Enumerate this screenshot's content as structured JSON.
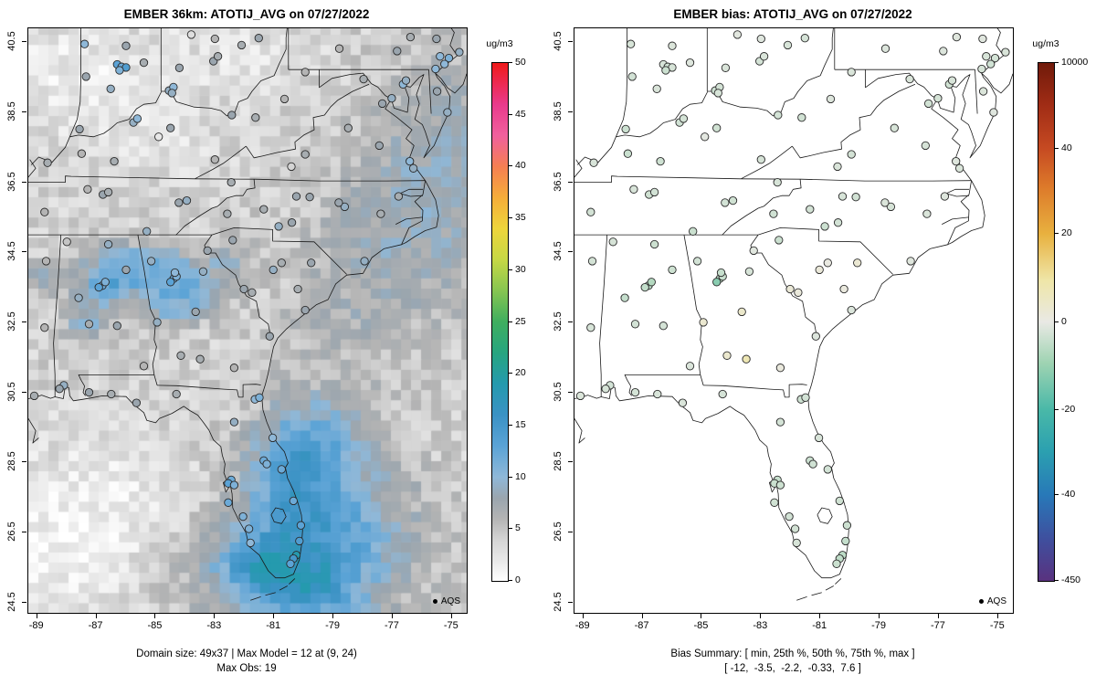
{
  "figure": {
    "background": "#ffffff"
  },
  "chart_data": [
    {
      "type": "map-scatter",
      "panel": "model",
      "title": "EMBER 36km: ATOTIJ_AVG on 07/27/2022",
      "xlim": [
        -89.3,
        -74.5
      ],
      "ylim": [
        24.2,
        40.9
      ],
      "x_ticks": [
        "-89",
        "-87",
        "-85",
        "-83",
        "-81",
        "-79",
        "-77",
        "-75"
      ],
      "x_tick_values": [
        -89,
        -87,
        -85,
        -83,
        -81,
        -79,
        -77,
        -75
      ],
      "y_ticks": [
        "40.5",
        "38.5",
        "36.5",
        "34.5",
        "32.5",
        "30.5",
        "28.5",
        "26.5",
        "24.5"
      ],
      "y_tick_values": [
        40.5,
        38.5,
        36.5,
        34.5,
        32.5,
        30.5,
        28.5,
        26.5,
        24.5
      ],
      "legend_label": "AQS",
      "caption_line1": "Domain size: 49x37 | Max Model = 12 at (9, 24)",
      "caption_line2": "Max Obs: 19",
      "value_max": 50,
      "colorbar": {
        "label": "ug/m3",
        "ticks": [
          {
            "f": 0,
            "label": "0"
          },
          {
            "f": 0.1,
            "label": "5"
          },
          {
            "f": 0.2,
            "label": "10"
          },
          {
            "f": 0.3,
            "label": "15"
          },
          {
            "f": 0.4,
            "label": "20"
          },
          {
            "f": 0.5,
            "label": "25"
          },
          {
            "f": 0.6,
            "label": "30"
          },
          {
            "f": 0.7,
            "label": "35"
          },
          {
            "f": 0.8,
            "label": "40"
          },
          {
            "f": 0.9,
            "label": "45"
          },
          {
            "f": 1,
            "label": "50"
          }
        ],
        "stops": [
          [
            0,
            "#ffffff"
          ],
          [
            0.04,
            "#e8e8e8"
          ],
          [
            0.08,
            "#d4d4d4"
          ],
          [
            0.12,
            "#b4b4b4"
          ],
          [
            0.16,
            "#9aa5ae"
          ],
          [
            0.2,
            "#8fb8d8"
          ],
          [
            0.26,
            "#5ba3d6"
          ],
          [
            0.32,
            "#3b92c4"
          ],
          [
            0.38,
            "#259aae"
          ],
          [
            0.44,
            "#27a580"
          ],
          [
            0.5,
            "#3fae5f"
          ],
          [
            0.56,
            "#86c551"
          ],
          [
            0.62,
            "#c6d845"
          ],
          [
            0.68,
            "#eed53c"
          ],
          [
            0.74,
            "#f5ad3a"
          ],
          [
            0.8,
            "#f57f52"
          ],
          [
            0.86,
            "#f0609d"
          ],
          [
            0.92,
            "#e93a8c"
          ],
          [
            1,
            "#ef1a1a"
          ]
        ]
      },
      "raster": {
        "cell_lon": 0.34,
        "cell_lat": 0.29,
        "base": 4.0,
        "noise": 1.8,
        "patches": [
          [
            -87.6,
            39.6,
            3.0,
            1.9,
            -2.2
          ],
          [
            -82.0,
            40.2,
            2.6,
            1.4,
            -1.4
          ],
          [
            -84.5,
            37.6,
            2.2,
            1.2,
            -1.0
          ],
          [
            -76.3,
            35.3,
            3.0,
            2.6,
            4.0
          ],
          [
            -74.9,
            38.3,
            2.4,
            2.4,
            2.8
          ],
          [
            -78.6,
            32.6,
            2.6,
            2.0,
            1.8
          ],
          [
            -88.8,
            25.9,
            3.4,
            2.6,
            -2.6
          ],
          [
            -86.0,
            27.6,
            2.6,
            2.0,
            -1.4
          ],
          [
            -83.4,
            25.2,
            2.2,
            1.4,
            1.6
          ],
          [
            -86.6,
            33.6,
            1.1,
            0.75,
            7.5
          ],
          [
            -85.2,
            34.15,
            1.5,
            0.65,
            7.0
          ],
          [
            -83.7,
            33.35,
            1.0,
            0.7,
            6.5
          ],
          [
            -84.8,
            33.0,
            0.8,
            0.6,
            5.0
          ],
          [
            -87.35,
            32.45,
            0.7,
            0.55,
            5.5
          ],
          [
            -88.75,
            33.75,
            0.6,
            0.45,
            4.5
          ],
          [
            -82.5,
            34.3,
            0.8,
            0.5,
            3.5
          ],
          [
            -79.3,
            26.4,
            2.8,
            2.3,
            9.5
          ],
          [
            -80.5,
            28.4,
            1.4,
            1.6,
            6.0
          ],
          [
            -79.2,
            29.3,
            1.6,
            1.2,
            4.5
          ],
          [
            -81.6,
            25.7,
            1.6,
            0.9,
            6.0
          ],
          [
            -80.2,
            24.8,
            2.0,
            1.0,
            7.0
          ]
        ]
      }
    },
    {
      "type": "map-scatter",
      "panel": "bias",
      "title": "EMBER bias: ATOTIJ_AVG on 07/27/2022",
      "xlim": [
        -89.3,
        -74.5
      ],
      "ylim": [
        24.2,
        40.9
      ],
      "x_ticks": [
        "-89",
        "-87",
        "-85",
        "-83",
        "-81",
        "-79",
        "-77",
        "-75"
      ],
      "x_tick_values": [
        -89,
        -87,
        -85,
        -83,
        -81,
        -79,
        -77,
        -75
      ],
      "y_ticks": [
        "40.5",
        "38.5",
        "36.5",
        "34.5",
        "32.5",
        "30.5",
        "28.5",
        "26.5",
        "24.5"
      ],
      "y_tick_values": [
        40.5,
        38.5,
        36.5,
        34.5,
        32.5,
        30.5,
        28.5,
        26.5,
        24.5
      ],
      "legend_label": "AQS",
      "caption_line1": "Bias Summary: [ min, 25th %, 50th %, 75th %, max ]",
      "caption_line2": "[ -12,  -3.5,  -2.2,  -0.33,  7.6 ]",
      "colorbar": {
        "label": "ug/m3",
        "ticks": [
          {
            "f": 0,
            "label": "-450"
          },
          {
            "f": 0.165,
            "label": "-40"
          },
          {
            "f": 0.33,
            "label": "-20"
          },
          {
            "f": 0.5,
            "label": "0"
          },
          {
            "f": 0.67,
            "label": "20"
          },
          {
            "f": 0.835,
            "label": "40"
          },
          {
            "f": 1,
            "label": "10000"
          }
        ],
        "stops": [
          [
            0,
            "#59327f"
          ],
          [
            0.08,
            "#3f4f9e"
          ],
          [
            0.165,
            "#2878b8"
          ],
          [
            0.25,
            "#2ba0b0"
          ],
          [
            0.33,
            "#49b8a8"
          ],
          [
            0.42,
            "#9ed3b2"
          ],
          [
            0.5,
            "#e9e9e4"
          ],
          [
            0.58,
            "#efe6a8"
          ],
          [
            0.67,
            "#e8b13f"
          ],
          [
            0.76,
            "#dd7a2a"
          ],
          [
            0.835,
            "#c64a22"
          ],
          [
            0.92,
            "#a02c15"
          ],
          [
            1,
            "#701a0a"
          ]
        ]
      },
      "bias_scale": [
        [
          -450,
          0
        ],
        [
          -40,
          0.165
        ],
        [
          -20,
          0.33
        ],
        [
          0,
          0.5
        ],
        [
          20,
          0.67
        ],
        [
          40,
          0.835
        ],
        [
          10000,
          1
        ]
      ]
    }
  ],
  "stations": [
    [
      -86.3,
      39.87,
      13,
      -2.1
    ],
    [
      -86.15,
      39.8,
      12,
      -3.0
    ],
    [
      -86.0,
      39.78,
      14,
      -2.4
    ],
    [
      -86.22,
      39.7,
      11,
      -3.8
    ],
    [
      -87.35,
      39.52,
      8,
      -2.9
    ],
    [
      -86.52,
      39.17,
      9,
      -2.0
    ],
    [
      -87.57,
      38.02,
      8,
      -3.6
    ],
    [
      -85.4,
      39.92,
      7,
      -1.4
    ],
    [
      -87.4,
      40.45,
      10,
      -2.2
    ],
    [
      -86.0,
      40.4,
      8,
      -1.8
    ],
    [
      -84.55,
      39.12,
      9,
      -3.4
    ],
    [
      -84.4,
      39.22,
      10,
      -2.8
    ],
    [
      -84.2,
      39.77,
      8,
      -2.0
    ],
    [
      -83.05,
      39.96,
      8,
      -2.6
    ],
    [
      -82.9,
      40.1,
      7,
      -1.9
    ],
    [
      -83.8,
      40.72,
      3,
      -0.9
    ],
    [
      -82.1,
      40.42,
      7,
      -2.2
    ],
    [
      -81.52,
      40.62,
      8,
      -2.5
    ],
    [
      -83.0,
      40.6,
      6,
      -1.2
    ],
    [
      -85.75,
      38.21,
      9,
      -3.1
    ],
    [
      -85.62,
      38.32,
      10,
      -2.6
    ],
    [
      -84.5,
      38.05,
      8,
      -3.2
    ],
    [
      -84.45,
      39.05,
      9,
      -2.3
    ],
    [
      -86.4,
      37.1,
      7,
      -3.4
    ],
    [
      -88.65,
      37.06,
      7,
      -2.1
    ],
    [
      -87.5,
      37.32,
      6,
      -4.0
    ],
    [
      -83.0,
      37.15,
      6,
      -2.4
    ],
    [
      -84.9,
      37.8,
      2,
      -0.8
    ],
    [
      -81.63,
      38.35,
      7,
      -3.0
    ],
    [
      -82.43,
      38.42,
      8,
      -2.7
    ],
    [
      -79.95,
      39.65,
      6,
      -1.9
    ],
    [
      -80.65,
      38.88,
      6,
      -1.5
    ],
    [
      -77.98,
      39.45,
      7,
      -2.0
    ],
    [
      -76.85,
      40.25,
      8,
      -1.6
    ],
    [
      -75.4,
      40.1,
      10,
      -2.2
    ],
    [
      -75.1,
      40.05,
      11,
      -2.7
    ],
    [
      -75.25,
      39.88,
      10,
      -3.1
    ],
    [
      -74.75,
      40.22,
      9,
      -2.0
    ],
    [
      -75.52,
      40.6,
      8,
      -1.1
    ],
    [
      -78.8,
      40.32,
      6,
      -1.6
    ],
    [
      -76.4,
      40.65,
      7,
      -1.3
    ],
    [
      -77.03,
      38.9,
      9,
      -2.6
    ],
    [
      -76.65,
      39.3,
      10,
      -3.2
    ],
    [
      -76.55,
      39.41,
      9,
      -2.1
    ],
    [
      -75.55,
      39.74,
      10,
      -2.4
    ],
    [
      -75.5,
      39.1,
      8,
      -1.8
    ],
    [
      -75.15,
      38.5,
      9,
      -1.2
    ],
    [
      -77.45,
      37.55,
      8,
      -2.4
    ],
    [
      -77.35,
      38.75,
      8,
      -3.0
    ],
    [
      -78.5,
      38.05,
      7,
      -2.2
    ],
    [
      -76.3,
      36.9,
      9,
      -1.9
    ],
    [
      -76.42,
      37.1,
      10,
      -1.4
    ],
    [
      -79.95,
      37.3,
      7,
      -2.8
    ],
    [
      -80.42,
      36.95,
      4,
      -2.0
    ],
    [
      -86.78,
      36.15,
      8,
      -3.3
    ],
    [
      -86.6,
      36.22,
      7,
      -2.9
    ],
    [
      -85.3,
      35.1,
      9,
      -3.9
    ],
    [
      -83.95,
      35.98,
      9,
      -3.2
    ],
    [
      -84.22,
      35.92,
      8,
      -2.7
    ],
    [
      -82.45,
      36.5,
      7,
      -2.3
    ],
    [
      -88.75,
      35.65,
      6,
      -2.8
    ],
    [
      -87.3,
      36.3,
      6,
      -2.1
    ],
    [
      -82.58,
      35.6,
      7,
      -3.1
    ],
    [
      -80.85,
      35.24,
      9,
      -3.6
    ],
    [
      -80.4,
      35.35,
      8,
      -2.9
    ],
    [
      -80.25,
      36.1,
      8,
      -2.3
    ],
    [
      -79.8,
      36.08,
      8,
      -3.0
    ],
    [
      -78.62,
      35.8,
      9,
      -2.4
    ],
    [
      -78.82,
      35.92,
      8,
      -1.8
    ],
    [
      -77.4,
      35.6,
      7,
      -1.9
    ],
    [
      -77.95,
      34.25,
      9,
      -1.3
    ],
    [
      -81.35,
      35.73,
      7,
      -2.8
    ],
    [
      -76.8,
      36.1,
      7,
      -1.5
    ],
    [
      -82.4,
      34.85,
      8,
      -3.8
    ],
    [
      -81.03,
      34.0,
      9,
      1.8
    ],
    [
      -80.2,
      33.45,
      7,
      0.9
    ],
    [
      -79.95,
      32.85,
      8,
      -1.7
    ],
    [
      -79.75,
      34.2,
      8,
      2.6
    ],
    [
      -81.75,
      33.35,
      7,
      1.4
    ],
    [
      -80.75,
      34.2,
      7,
      0.4
    ],
    [
      -84.39,
      33.75,
      12,
      -5.2
    ],
    [
      -84.3,
      33.81,
      11,
      -4.1
    ],
    [
      -84.5,
      33.65,
      13,
      -12.0
    ],
    [
      -84.35,
      33.92,
      10,
      -4.4
    ],
    [
      -85.15,
      34.25,
      9,
      -2.9
    ],
    [
      -83.4,
      33.95,
      9,
      -2.2
    ],
    [
      -83.65,
      32.8,
      8,
      3.9
    ],
    [
      -82.02,
      33.45,
      8,
      2.2
    ],
    [
      -84.95,
      32.5,
      9,
      3.1
    ],
    [
      -81.15,
      32.1,
      8,
      -1.6
    ],
    [
      -83.5,
      31.45,
      7,
      7.6
    ],
    [
      -84.15,
      31.55,
      7,
      3.4
    ],
    [
      -82.35,
      31.2,
      6,
      1.1
    ],
    [
      -83.25,
      34.55,
      8,
      -1.0
    ],
    [
      -86.8,
      33.55,
      12,
      -5.8
    ],
    [
      -86.92,
      33.5,
      13,
      -4.9
    ],
    [
      -86.7,
      33.65,
      11,
      -6.7
    ],
    [
      -86.6,
      34.73,
      9,
      -3.7
    ],
    [
      -86.3,
      32.4,
      8,
      -2.6
    ],
    [
      -87.6,
      33.2,
      9,
      -4.6
    ],
    [
      -86.0,
      34.0,
      8,
      -3.5
    ],
    [
      -88.1,
      30.7,
      9,
      -2.7
    ],
    [
      -88.25,
      30.6,
      8,
      -2.2
    ],
    [
      -87.25,
      32.45,
      7,
      -2.9
    ],
    [
      -85.4,
      31.25,
      6,
      -1.7
    ],
    [
      -88.0,
      34.8,
      5,
      -2.4
    ],
    [
      -88.7,
      34.25,
      6,
      -2.6
    ],
    [
      -88.75,
      32.35,
      6,
      -2.3
    ],
    [
      -89.1,
      30.4,
      7,
      -1.8
    ],
    [
      -87.25,
      30.5,
      8,
      -2.6
    ],
    [
      -86.5,
      30.45,
      7,
      -2.1
    ],
    [
      -85.65,
      30.2,
      8,
      -1.9
    ],
    [
      -84.3,
      30.45,
      7,
      -2.5
    ],
    [
      -81.65,
      30.3,
      10,
      -3.4
    ],
    [
      -81.5,
      30.35,
      11,
      -2.9
    ],
    [
      -82.35,
      29.65,
      9,
      -2.6
    ],
    [
      -81.05,
      29.2,
      10,
      -2.1
    ],
    [
      -81.35,
      28.55,
      12,
      -3.6
    ],
    [
      -81.25,
      28.45,
      11,
      -3.1
    ],
    [
      -80.75,
      28.3,
      12,
      -2.7
    ],
    [
      -82.45,
      28.0,
      12,
      -4.4
    ],
    [
      -82.55,
      27.9,
      13,
      -3.9
    ],
    [
      -82.35,
      27.85,
      11,
      -3.5
    ],
    [
      -82.55,
      27.35,
      12,
      -3.2
    ],
    [
      -81.85,
      26.6,
      11,
      -2.8
    ],
    [
      -81.8,
      26.2,
      10,
      -2.3
    ],
    [
      -80.1,
      26.7,
      13,
      -3.7
    ],
    [
      -80.15,
      26.25,
      14,
      -4.6
    ],
    [
      -80.25,
      25.85,
      19,
      -5.6
    ],
    [
      -80.35,
      25.75,
      15,
      -5.1
    ],
    [
      -80.45,
      25.6,
      13,
      -3.9
    ],
    [
      -80.35,
      27.4,
      12,
      -3.3
    ],
    [
      -82.05,
      26.95,
      11,
      -2.9
    ]
  ]
}
